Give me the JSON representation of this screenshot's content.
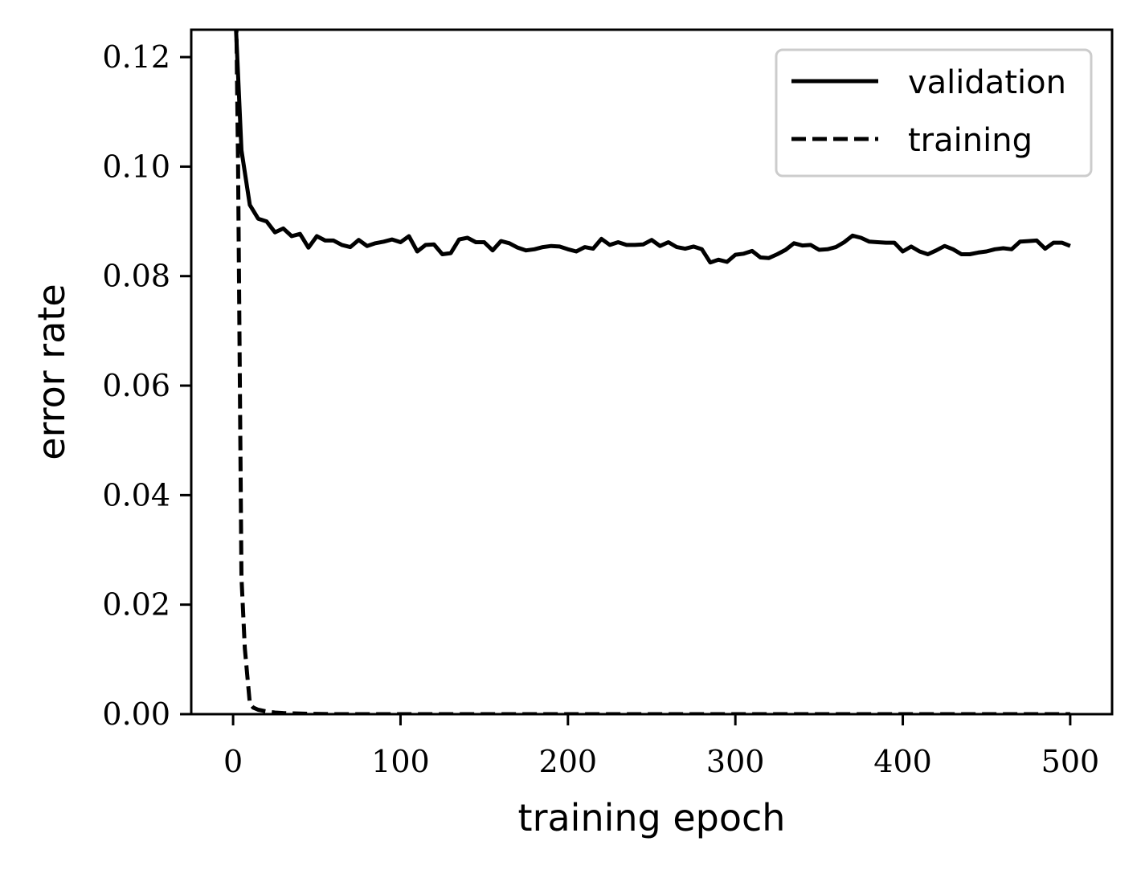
{
  "chart_data": {
    "type": "line",
    "title": "",
    "xlabel": "training epoch",
    "ylabel": "error rate",
    "xlim": [
      -25,
      525
    ],
    "ylim": [
      0,
      0.125
    ],
    "xticks": [
      0,
      100,
      200,
      300,
      400,
      500
    ],
    "xtick_labels": [
      "0",
      "100",
      "200",
      "300",
      "400",
      "500"
    ],
    "yticks": [
      0,
      0.02,
      0.04,
      0.06,
      0.08,
      0.1,
      0.12
    ],
    "ytick_labels": [
      "0.00",
      "0.02",
      "0.04",
      "0.06",
      "0.08",
      "0.10",
      "0.12"
    ],
    "grid": false,
    "legend": {
      "placement": "top-right",
      "entries": [
        "validation",
        "training"
      ]
    },
    "series": [
      {
        "name": "validation",
        "style": "solid",
        "color": "#000000",
        "x": [
          1,
          5,
          10,
          15,
          20,
          25,
          30,
          35,
          40,
          45,
          50,
          55,
          60,
          65,
          70,
          75,
          80,
          85,
          90,
          95,
          100,
          105,
          110,
          115,
          120,
          125,
          130,
          135,
          140,
          145,
          150,
          155,
          160,
          165,
          170,
          175,
          180,
          185,
          190,
          195,
          200,
          205,
          210,
          215,
          220,
          225,
          230,
          235,
          240,
          245,
          250,
          255,
          260,
          265,
          270,
          275,
          280,
          285,
          290,
          295,
          300,
          305,
          310,
          315,
          320,
          325,
          330,
          335,
          340,
          345,
          350,
          355,
          360,
          365,
          370,
          375,
          380,
          385,
          390,
          395,
          400,
          405,
          410,
          415,
          420,
          425,
          430,
          435,
          440,
          445,
          450,
          455,
          460,
          465,
          470,
          475,
          480,
          485,
          490,
          495,
          500
        ],
        "values": [
          0.13,
          0.103,
          0.093,
          0.0905,
          0.09,
          0.088,
          0.0887,
          0.0873,
          0.0877,
          0.0852,
          0.0873,
          0.0865,
          0.0865,
          0.0857,
          0.0853,
          0.0866,
          0.0855,
          0.086,
          0.0863,
          0.0867,
          0.0862,
          0.0873,
          0.0845,
          0.0857,
          0.0858,
          0.084,
          0.0842,
          0.0867,
          0.087,
          0.0862,
          0.0862,
          0.0847,
          0.0864,
          0.086,
          0.0852,
          0.0847,
          0.0849,
          0.0853,
          0.0855,
          0.0854,
          0.0849,
          0.0845,
          0.0853,
          0.085,
          0.0868,
          0.0857,
          0.0862,
          0.0857,
          0.0857,
          0.0858,
          0.0866,
          0.0855,
          0.0862,
          0.0853,
          0.085,
          0.0854,
          0.0849,
          0.0825,
          0.083,
          0.0826,
          0.0839,
          0.0841,
          0.0846,
          0.0834,
          0.0833,
          0.084,
          0.0848,
          0.086,
          0.0856,
          0.0857,
          0.0848,
          0.0849,
          0.0853,
          0.0862,
          0.0874,
          0.087,
          0.0863,
          0.0862,
          0.0861,
          0.0861,
          0.0845,
          0.0854,
          0.0845,
          0.084,
          0.0847,
          0.0855,
          0.0849,
          0.084,
          0.084,
          0.0843,
          0.0845,
          0.0849,
          0.0851,
          0.0849,
          0.0863,
          0.0864,
          0.0865,
          0.085,
          0.0861,
          0.0861,
          0.0855
        ]
      },
      {
        "name": "training",
        "style": "dashed",
        "color": "#000000",
        "x": [
          1,
          3,
          5,
          7,
          10,
          12,
          15,
          20,
          25,
          30,
          40,
          60,
          100,
          200,
          300,
          400,
          500
        ],
        "values": [
          0.15,
          0.1,
          0.025,
          0.012,
          0.002,
          0.0012,
          0.0008,
          0.0005,
          0.0003,
          0.0002,
          0.0001,
          0.0,
          0.0,
          0.0,
          0.0,
          0.0,
          0.0
        ]
      }
    ]
  }
}
